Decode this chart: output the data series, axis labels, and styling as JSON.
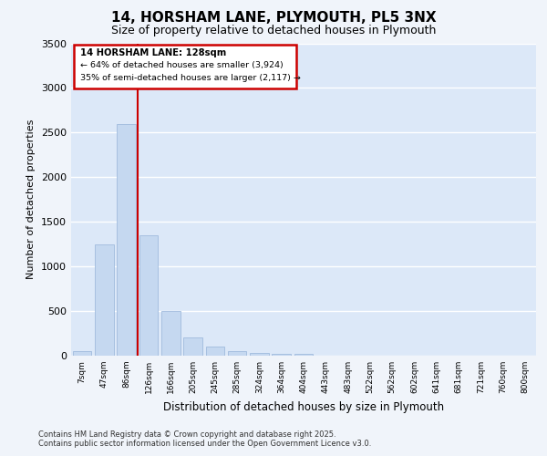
{
  "title_line1": "14, HORSHAM LANE, PLYMOUTH, PL5 3NX",
  "title_line2": "Size of property relative to detached houses in Plymouth",
  "xlabel": "Distribution of detached houses by size in Plymouth",
  "ylabel": "Number of detached properties",
  "categories": [
    "7sqm",
    "47sqm",
    "86sqm",
    "126sqm",
    "166sqm",
    "205sqm",
    "245sqm",
    "285sqm",
    "324sqm",
    "364sqm",
    "404sqm",
    "443sqm",
    "483sqm",
    "522sqm",
    "562sqm",
    "602sqm",
    "641sqm",
    "681sqm",
    "721sqm",
    "760sqm",
    "800sqm"
  ],
  "values": [
    50,
    1250,
    2600,
    1350,
    500,
    200,
    100,
    50,
    30,
    20,
    20,
    5,
    0,
    0,
    0,
    0,
    0,
    0,
    0,
    0,
    0
  ],
  "bar_color": "#c5d8f0",
  "bar_edge_color": "#a0bbdd",
  "plot_bg_color": "#dce8f8",
  "fig_bg_color": "#f0f4fa",
  "grid_color": "#ffffff",
  "vline_x": 3,
  "vline_color": "#cc0000",
  "annotation_title": "14 HORSHAM LANE: 128sqm",
  "annotation_line1": "← 64% of detached houses are smaller (3,924)",
  "annotation_line2": "35% of semi-detached houses are larger (2,117) →",
  "annotation_box_color": "#cc0000",
  "ylim": [
    0,
    3500
  ],
  "yticks": [
    0,
    500,
    1000,
    1500,
    2000,
    2500,
    3000,
    3500
  ],
  "footer_line1": "Contains HM Land Registry data © Crown copyright and database right 2025.",
  "footer_line2": "Contains public sector information licensed under the Open Government Licence v3.0."
}
